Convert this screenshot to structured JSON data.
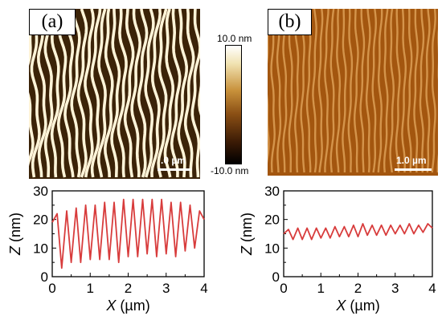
{
  "figure": {
    "panel_a_label": "(a)",
    "panel_b_label": "(b)",
    "panel_a_scale": ".0 µm",
    "panel_b_scale": "1.0 µm",
    "colorbar_max": "10.0 nm",
    "colorbar_min": "-10.0 nm"
  },
  "chart_data": [
    {
      "type": "line",
      "xlabel_var": "X",
      "xlabel_unit": "(µm)",
      "ylabel_var": "Z",
      "ylabel_unit": "(nm)",
      "xlim": [
        0,
        4
      ],
      "ylim": [
        0,
        30
      ],
      "xticks": [
        "0",
        "1",
        "2",
        "3",
        "4"
      ],
      "yticks": [
        "0",
        "10",
        "20",
        "30"
      ],
      "series": [
        {
          "color": "#d83c3c",
          "profile": "large oscillation ~4 periods/µm",
          "x": [
            0.0,
            0.13,
            0.25,
            0.38,
            0.5,
            0.63,
            0.75,
            0.88,
            1.0,
            1.13,
            1.25,
            1.38,
            1.5,
            1.63,
            1.75,
            1.88,
            2.0,
            2.13,
            2.25,
            2.38,
            2.5,
            2.63,
            2.75,
            2.88,
            3.0,
            3.13,
            3.25,
            3.38,
            3.5,
            3.63,
            3.75,
            3.88,
            4.0
          ],
          "y": [
            19,
            22,
            3,
            23,
            5,
            24,
            5,
            25,
            6,
            25,
            6,
            26,
            6,
            26,
            5,
            27,
            7,
            27,
            7,
            27,
            8,
            27,
            7,
            27,
            8,
            26,
            7,
            26,
            9,
            25,
            10,
            23,
            20
          ]
        }
      ]
    },
    {
      "type": "line",
      "xlabel_var": "X",
      "xlabel_unit": "(µm)",
      "ylabel_var": "Z",
      "ylabel_unit": "(nm)",
      "xlim": [
        0,
        4
      ],
      "ylim": [
        0,
        30
      ],
      "xticks": [
        "0",
        "1",
        "2",
        "3",
        "4"
      ],
      "yticks": [
        "0",
        "10",
        "20",
        "30"
      ],
      "series": [
        {
          "color": "#d83c3c",
          "profile": "small oscillation ~4 periods/µm",
          "x": [
            0.0,
            0.13,
            0.25,
            0.38,
            0.5,
            0.63,
            0.75,
            0.88,
            1.0,
            1.13,
            1.25,
            1.38,
            1.5,
            1.63,
            1.75,
            1.88,
            2.0,
            2.13,
            2.25,
            2.38,
            2.5,
            2.63,
            2.75,
            2.88,
            3.0,
            3.13,
            3.25,
            3.38,
            3.5,
            3.63,
            3.75,
            3.88,
            4.0
          ],
          "y": [
            15,
            16.5,
            13,
            17,
            13,
            17,
            13,
            17,
            13.5,
            17,
            13.5,
            17.5,
            14,
            17.5,
            14,
            18,
            14,
            18.5,
            14.5,
            18,
            14.5,
            18,
            14.5,
            18,
            15,
            18,
            15,
            18.5,
            15,
            18,
            15.5,
            18.5,
            17
          ]
        }
      ]
    }
  ]
}
